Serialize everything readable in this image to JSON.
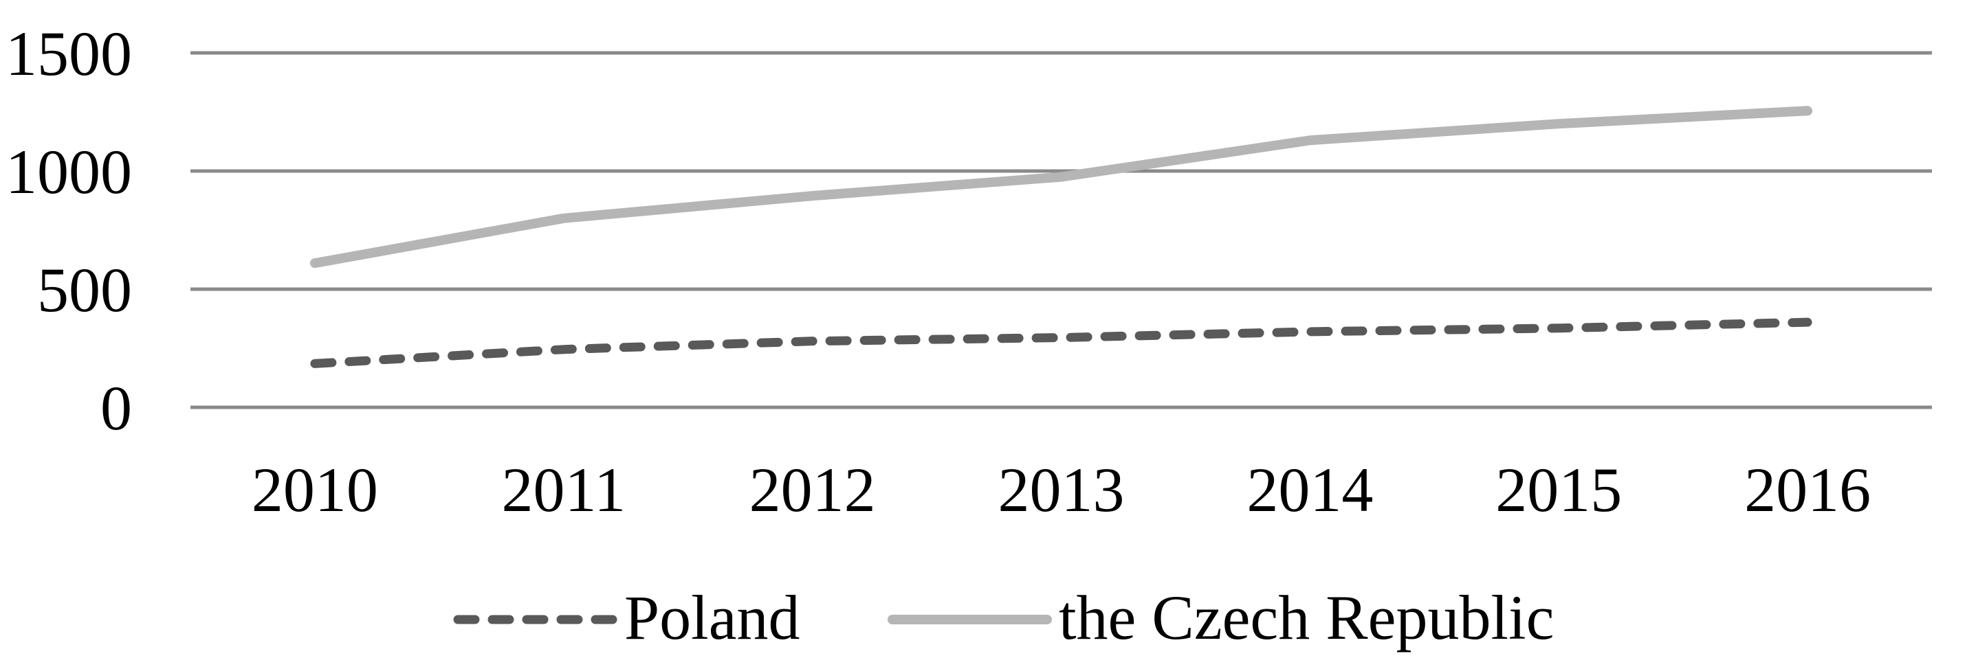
{
  "chart_data": {
    "type": "line",
    "title": "",
    "xlabel": "",
    "ylabel": "",
    "categories": [
      "2010",
      "2011",
      "2012",
      "2013",
      "2014",
      "2015",
      "2016"
    ],
    "series": [
      {
        "name": "Poland",
        "values": [
          185,
          245,
          280,
          295,
          320,
          335,
          360
        ],
        "color": "#595959",
        "line_style": "dashed"
      },
      {
        "name": "the Czech Republic",
        "values": [
          610,
          800,
          895,
          975,
          1130,
          1200,
          1255
        ],
        "color": "#B5B5B5",
        "line_style": "solid"
      }
    ],
    "ylim": [
      0,
      1500
    ],
    "yticks": [
      0,
      500,
      1000,
      1500
    ],
    "grid": "horizontal gridlines",
    "gridline_color": "#8A8A8A",
    "axis_text_color": "#000000",
    "legend_position": "bottom center"
  }
}
